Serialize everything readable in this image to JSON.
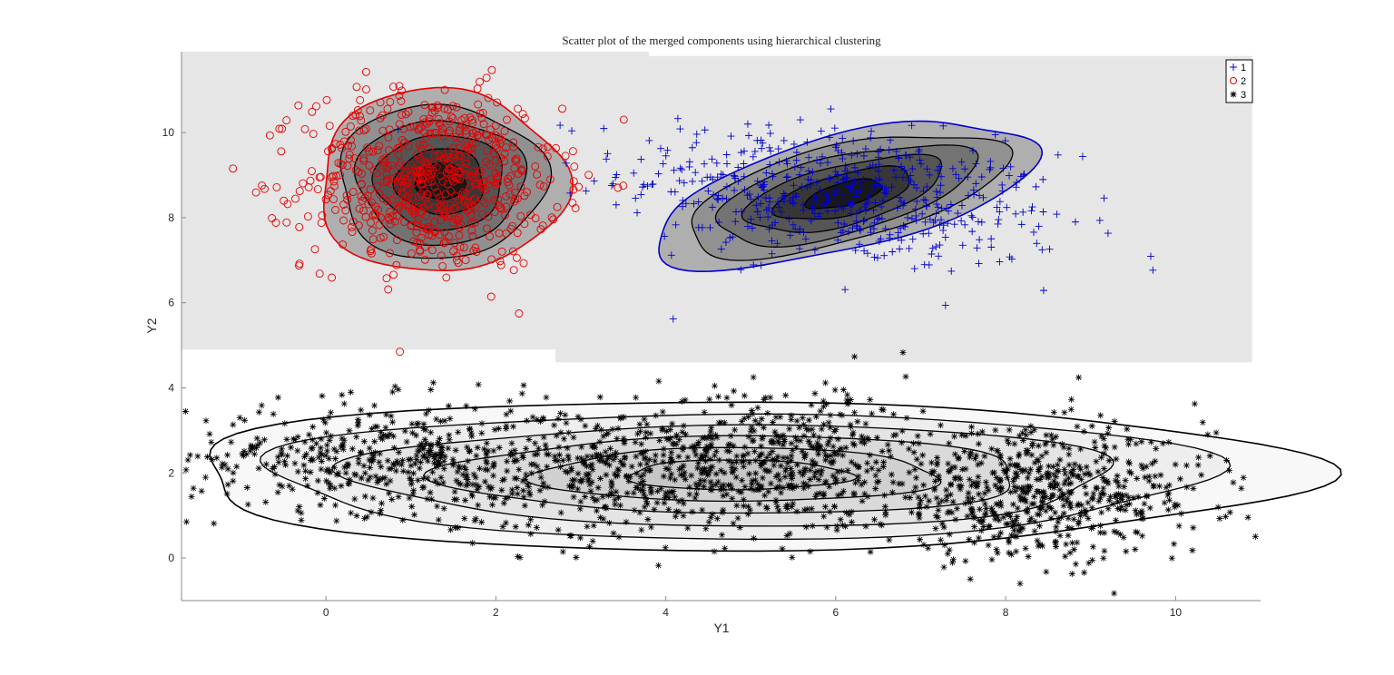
{
  "chart_data": {
    "type": "scatter",
    "title": "Scatter plot of the merged components using hierarchical clustering",
    "xlabel": "Y1",
    "ylabel": "Y2",
    "xlim": [
      -1.7,
      11.0
    ],
    "ylim": [
      -1.0,
      11.9
    ],
    "xticks": [
      0,
      2,
      4,
      6,
      8,
      10
    ],
    "yticks": [
      0,
      2,
      4,
      6,
      8,
      10
    ],
    "legend_position": "top-right",
    "contours": true,
    "series": [
      {
        "name": "1",
        "marker": "+",
        "color": "#0000cc",
        "clusters": [
          {
            "center": [
              6.1,
              8.5
            ],
            "spread": [
              1.3,
              0.85
            ],
            "corr": -0.35,
            "count": 520
          }
        ],
        "contour_center": [
          6.1,
          8.55
        ],
        "contour_radii": [
          2.3,
          1.35
        ],
        "contour_angle_deg": -14,
        "background_region": {
          "x": [
            2.7,
            10.9
          ],
          "y": [
            4.6,
            11.8
          ]
        }
      },
      {
        "name": "2",
        "marker": "o",
        "color": "#e60000",
        "clusters": [
          {
            "center": [
              1.25,
              8.9
            ],
            "spread": [
              0.75,
              1.05
            ],
            "corr": 0.0,
            "count": 620
          }
        ],
        "contour_center": [
          1.35,
          8.85
        ],
        "contour_radii": [
          1.45,
          2.15
        ],
        "contour_angle_deg": 0,
        "background_region": {
          "x": [
            -1.7,
            3.8
          ],
          "y": [
            4.9,
            11.9
          ]
        }
      },
      {
        "name": "3",
        "marker": "*",
        "color": "#000000",
        "clusters": [
          {
            "center": [
              0.6,
              2.4
            ],
            "spread": [
              1.1,
              0.65
            ],
            "corr": 0.0,
            "count": 420
          },
          {
            "center": [
              3.8,
              2.0
            ],
            "spread": [
              1.3,
              0.75
            ],
            "corr": 0.0,
            "count": 560
          },
          {
            "center": [
              5.6,
              2.5
            ],
            "spread": [
              0.9,
              0.8
            ],
            "corr": 0.0,
            "count": 300
          },
          {
            "center": [
              8.4,
              1.5
            ],
            "spread": [
              1.0,
              0.75
            ],
            "corr": 0.0,
            "count": 620
          }
        ],
        "contour_center": [
          4.85,
          1.95
        ],
        "contour_radii": [
          6.6,
          1.75
        ],
        "contour_angle_deg": 0
      }
    ]
  }
}
